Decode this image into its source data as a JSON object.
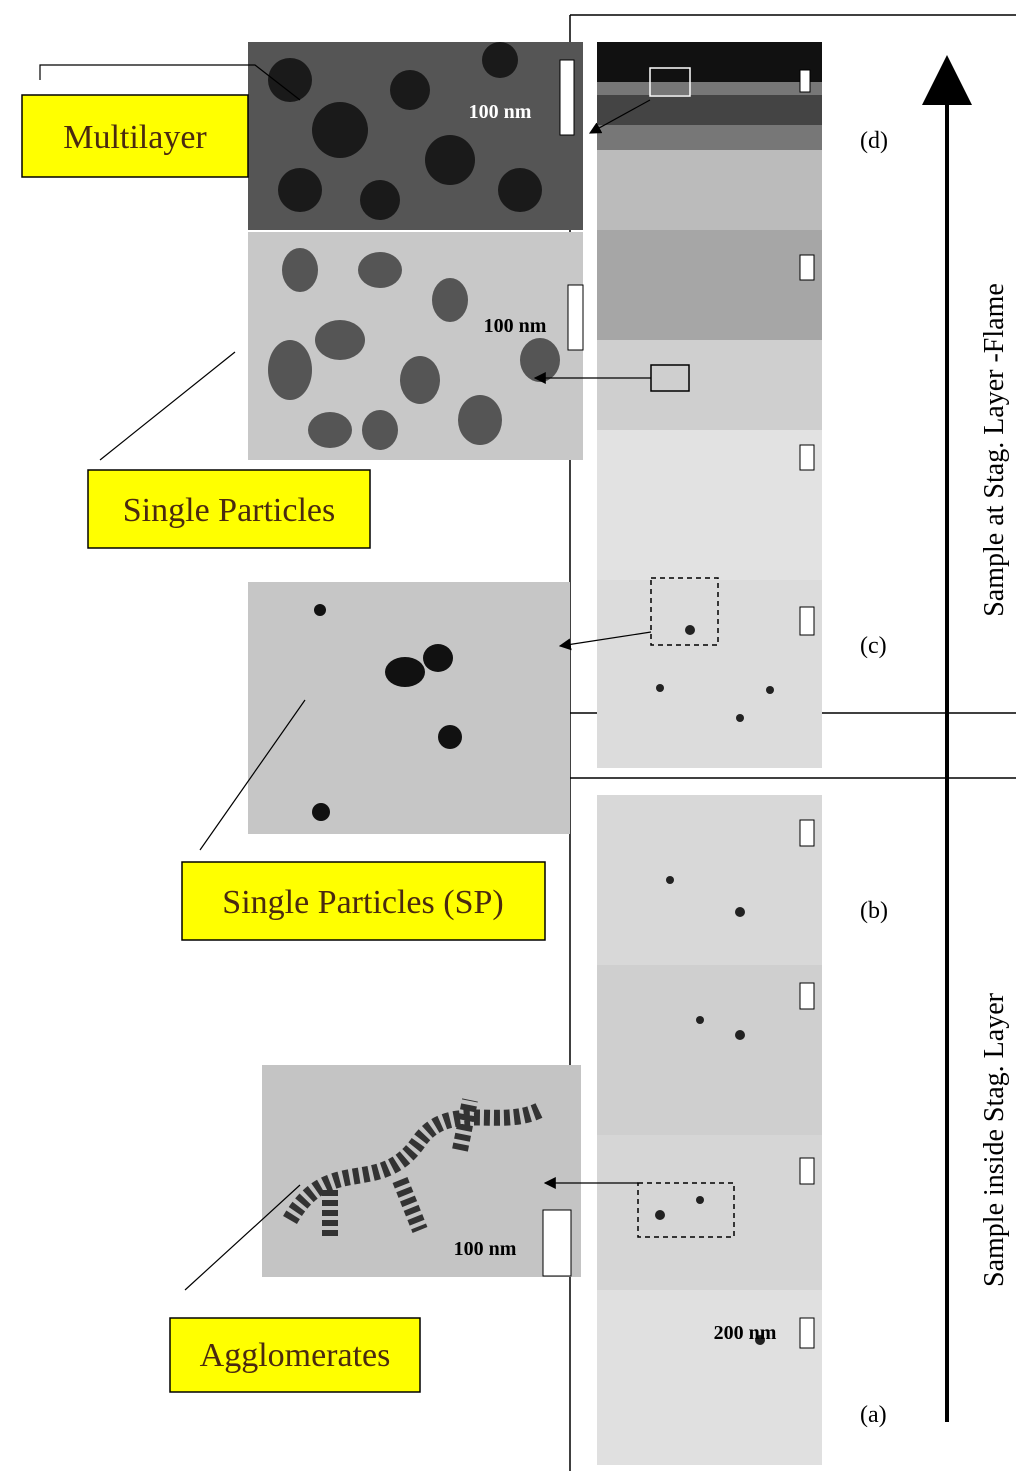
{
  "labels": {
    "multilayer": "Multilayer",
    "single_particles": "Single Particles",
    "single_particles_sp": "Single Particles (SP)",
    "agglomerates": "Agglomerates"
  },
  "scale_bars": [
    "100 nm",
    "100 nm",
    "100 nm",
    "200 nm"
  ],
  "panels": [
    "(a)",
    "(b)",
    "(c)",
    "(d)"
  ],
  "axis_labels": {
    "upper": "Sample at Stag. Layer -Flame",
    "lower": "Sample inside Stag. Layer"
  }
}
